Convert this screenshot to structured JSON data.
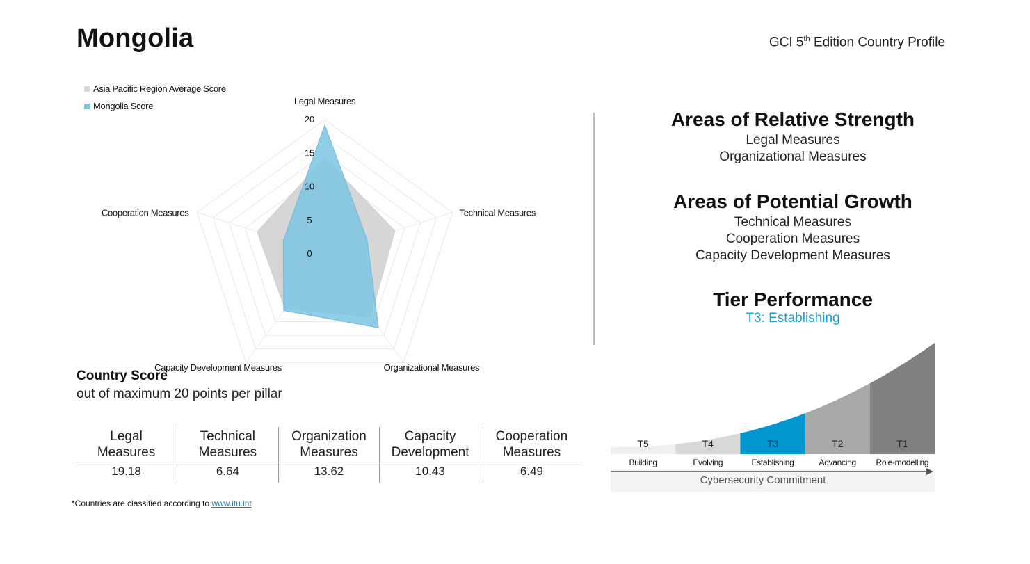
{
  "header": {
    "country": "Mongolia",
    "edition_prefix": "GCI 5",
    "edition_sup": "th",
    "edition_suffix": " Edition Country Profile"
  },
  "chart_data": {
    "type": "radar",
    "axes": [
      "Legal Measures",
      "Technical Measures",
      "Organizational Measures",
      "Capacity Development Measures",
      "Cooperation Measures"
    ],
    "rlim": [
      0,
      20
    ],
    "r_ticks": [
      0,
      5,
      10,
      15,
      20
    ],
    "grid": true,
    "legend_position": "top-left",
    "series": [
      {
        "name": "Asia Pacific Region Average Score",
        "values": [
          14.3,
          11.0,
          11.6,
          10.1,
          10.6
        ],
        "color": "#d6d6d6"
      },
      {
        "name": "Mongolia Score",
        "values": [
          19.18,
          6.64,
          13.62,
          10.43,
          6.49
        ],
        "color": "#7cc4e3"
      }
    ]
  },
  "strengths": {
    "title": "Areas of Relative Strength",
    "items": [
      "Legal Measures",
      "Organizational Measures"
    ]
  },
  "growth": {
    "title": "Areas of Potential Growth",
    "items": [
      "Technical Measures",
      "Cooperation Measures",
      "Capacity Development Measures"
    ]
  },
  "tier": {
    "title": "Tier Performance",
    "value": "T3: Establishing",
    "tiers": [
      {
        "code": "T5",
        "label": "Building",
        "color": "#efefef"
      },
      {
        "code": "T4",
        "label": "Evolving",
        "color": "#d8d8d8"
      },
      {
        "code": "T3",
        "label": "Establishing",
        "color": "#0097d1"
      },
      {
        "code": "T2",
        "label": "Advancing",
        "color": "#a8a8a8"
      },
      {
        "code": "T1",
        "label": "Role-modelling",
        "color": "#808080"
      }
    ],
    "axis_label": "Cybersecurity Commitment",
    "active_index": 2
  },
  "score": {
    "heading": "Country Score",
    "subheading": "out of maximum 20 points per pillar",
    "columns": [
      {
        "line1": "Legal",
        "line2": "Measures",
        "value": "19.18"
      },
      {
        "line1": "Technical",
        "line2": "Measures",
        "value": "6.64"
      },
      {
        "line1": "Organization",
        "line2": "Measures",
        "value": "13.62"
      },
      {
        "line1": "Capacity",
        "line2": "Development",
        "value": "10.43"
      },
      {
        "line1": "Cooperation",
        "line2": "Measures",
        "value": "6.49"
      }
    ]
  },
  "footnote": {
    "text": "*Countries are classified according to ",
    "link": "www.itu.int"
  }
}
